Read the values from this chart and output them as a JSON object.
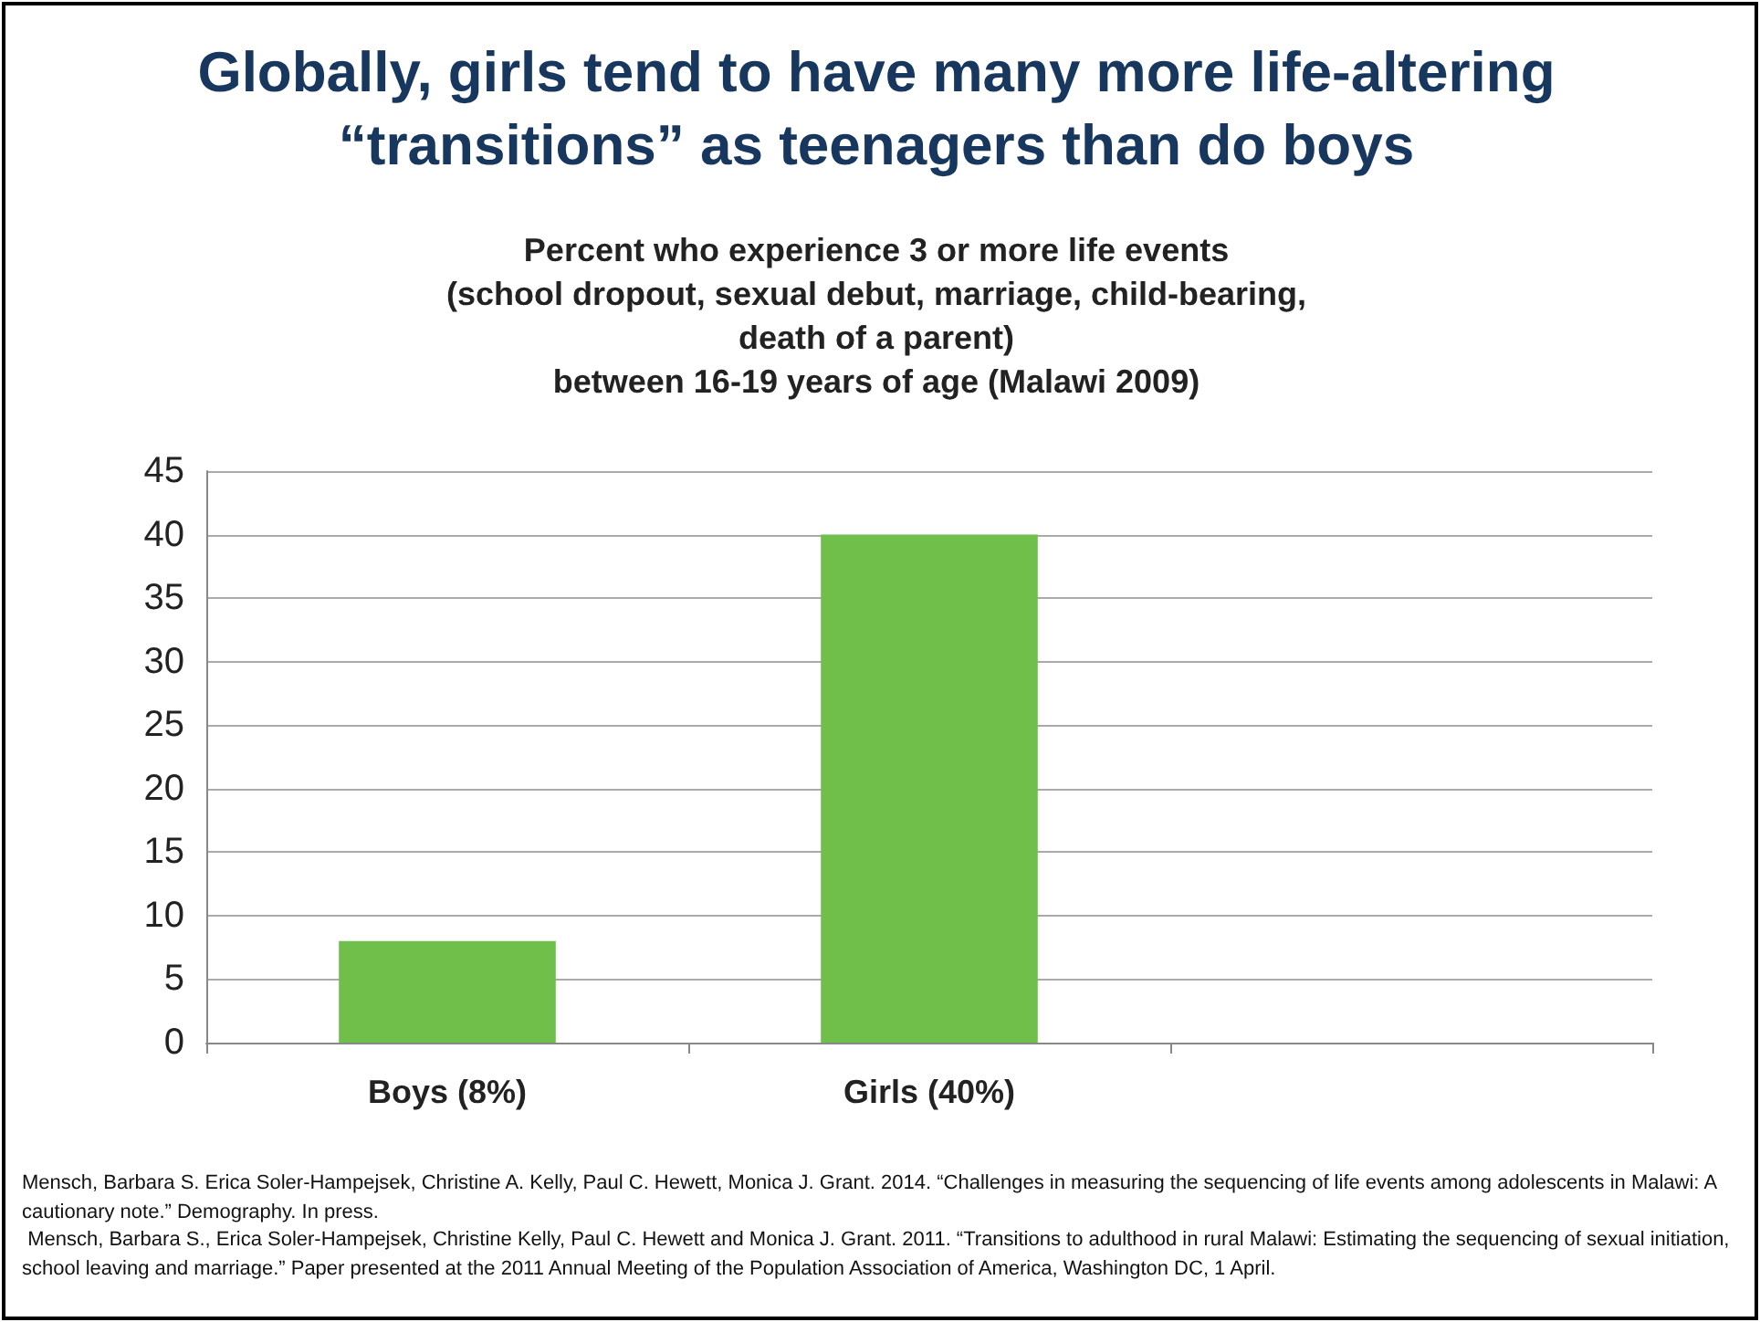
{
  "chart_data": {
    "type": "bar",
    "title": "Globally, girls tend to have many more life-altering\n“transitions” as teenagers than do boys",
    "subtitle": "Percent who experience 3 or more life events\n(school dropout, sexual debut, marriage, child-bearing,\ndeath of a parent)\nbetween 16-19 years of age (Malawi 2009)",
    "categories": [
      "Boys (8%)",
      "Girls (40%)",
      null
    ],
    "values": [
      8,
      40,
      null
    ],
    "color": "#70bf4a",
    "ylim": [
      0,
      45
    ],
    "yticks": [
      0,
      5,
      10,
      15,
      20,
      25,
      30,
      35,
      40,
      45
    ],
    "grid": "y",
    "annotations": [
      "Mensch, Barbara S. Erica Soler-Hampejsek, Christine A. Kelly, Paul C. Hewett, Monica J. Grant. 2014. “Challenges in measuring the sequencing of life events among adolescents in Malawi: A cautionary note.” Demography. In press.",
      " Mensch, Barbara S., Erica Soler-Hampejsek, Christine Kelly, Paul C. Hewett and Monica J. Grant. 2011. “Transitions to adulthood in rural Malawi: Estimating the sequencing of sexual initiation, school leaving and marriage.” Paper presented at the 2011 Annual Meeting of the Population Association of America, Washington DC, 1 April."
    ]
  }
}
